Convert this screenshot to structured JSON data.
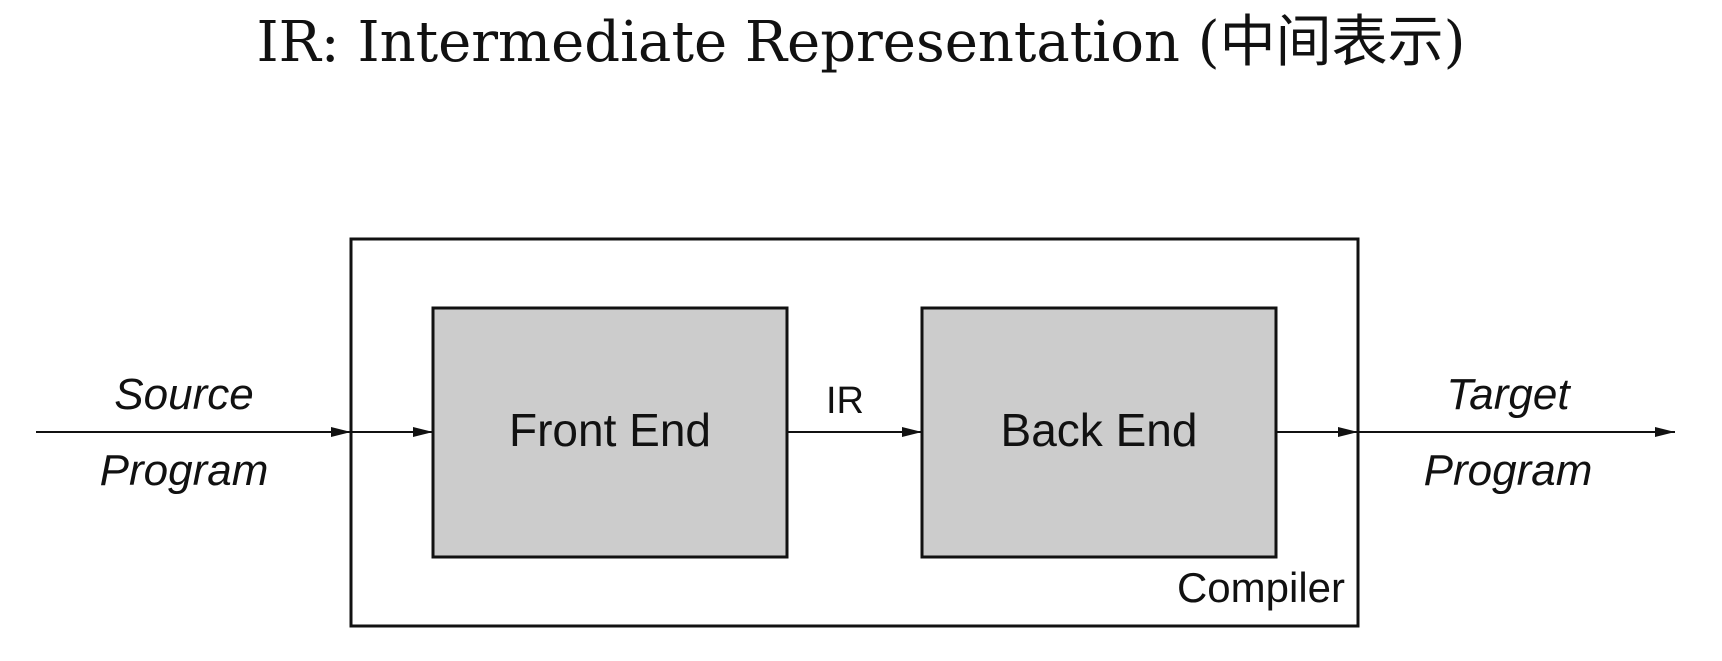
{
  "title": "IR: Intermediate Representation (中间表示)",
  "diagram": {
    "input_label_line1": "Source",
    "input_label_line2": "Program",
    "front_end_label": "Front End",
    "ir_label": "IR",
    "back_end_label": "Back End",
    "container_label": "Compiler",
    "output_label_line1": "Target",
    "output_label_line2": "Program",
    "colors": {
      "box_fill": "#cccccc",
      "stroke": "#111111",
      "background": "#ffffff"
    }
  }
}
